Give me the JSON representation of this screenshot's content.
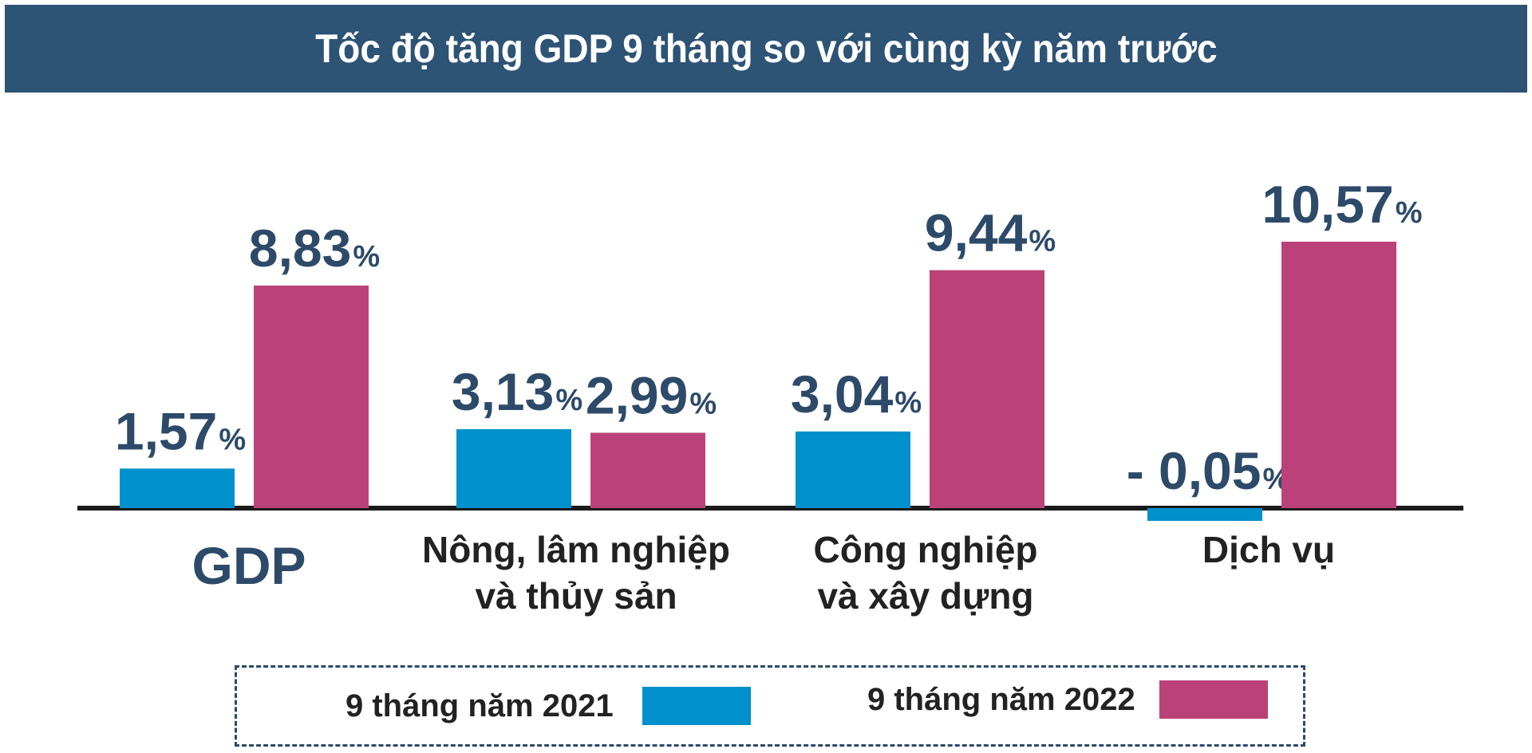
{
  "chart_data": {
    "type": "bar",
    "title": "Tốc độ tăng GDP 9 tháng so với cùng kỳ năm trước",
    "categories": [
      "GDP",
      "Nông, lâm nghiệp và thủy sản",
      "Công nghiệp và xây dựng",
      "Dịch vụ"
    ],
    "category_lines": [
      [
        "GDP"
      ],
      [
        "Nông, lâm nghiệp",
        "và thủy sản"
      ],
      [
        "Công nghiệp",
        "và xây dựng"
      ],
      [
        "Dịch vụ"
      ]
    ],
    "series": [
      {
        "name": "9 tháng năm 2021",
        "color": "#0090cc",
        "values": [
          1.57,
          3.13,
          3.04,
          -0.05
        ],
        "labels": [
          "1,57",
          "3,13",
          "3,04",
          "- 0,05"
        ]
      },
      {
        "name": "9 tháng năm 2022",
        "color": "#bb4279",
        "values": [
          8.83,
          2.99,
          9.44,
          10.57
        ],
        "labels": [
          "8,83",
          "2,99",
          "9,44",
          "10,57"
        ]
      }
    ],
    "unit": "%",
    "xlabel": "",
    "ylabel": "",
    "grid": false,
    "legend_position": "bottom"
  },
  "legend": {
    "item_2021": "9 tháng năm 2021",
    "item_2022": "9 tháng năm 2022"
  },
  "colors": {
    "header": "#2d5375",
    "series_2021": "#0090cc",
    "series_2022": "#bb4279",
    "label": "#2d4a69"
  }
}
